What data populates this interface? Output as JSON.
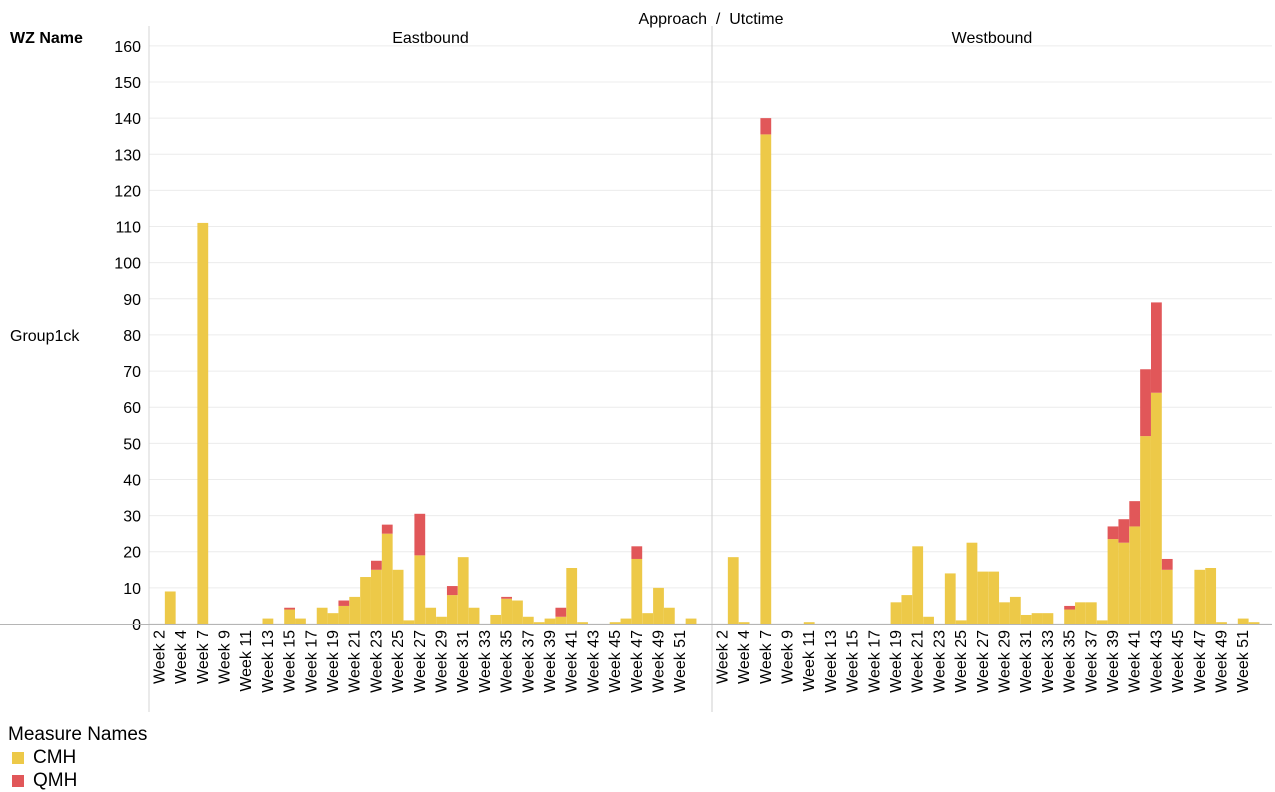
{
  "header": {
    "top_title": "Approach  /  Utctime",
    "row_header": "WZ Name",
    "row_label": "Group1ck"
  },
  "legend": {
    "title": "Measure Names",
    "items": [
      {
        "label": "CMH",
        "color": "#EDC948"
      },
      {
        "label": "QMH",
        "color": "#E15759"
      }
    ]
  },
  "chart_data": {
    "type": "bar",
    "stacked": true,
    "title": "",
    "xlabel": "Utctime",
    "ylabel": "",
    "ylim": [
      0,
      160
    ],
    "y_ticks": [
      0,
      10,
      20,
      30,
      40,
      50,
      60,
      70,
      80,
      90,
      100,
      110,
      120,
      130,
      140,
      150,
      160
    ],
    "grid": true,
    "legend_position": "bottom-left",
    "panels": [
      {
        "name": "Eastbound",
        "categories": [
          "Week 2",
          "Week 3",
          "Week 4",
          "Week 5",
          "Week 7",
          "Week 8",
          "Week 9",
          "Week 10",
          "Week 11",
          "Week 12",
          "Week 13",
          "Week 14",
          "Week 15",
          "Week 16",
          "Week 17",
          "Week 18",
          "Week 19",
          "Week 20",
          "Week 21",
          "Week 22",
          "Week 23",
          "Week 24",
          "Week 25",
          "Week 26",
          "Week 27",
          "Week 28",
          "Week 29",
          "Week 30",
          "Week 31",
          "Week 32",
          "Week 33",
          "Week 34",
          "Week 35",
          "Week 36",
          "Week 37",
          "Week 38",
          "Week 39",
          "Week 40",
          "Week 41",
          "Week 42",
          "Week 43",
          "Week 44",
          "Week 45",
          "Week 46",
          "Week 47",
          "Week 48",
          "Week 49",
          "Week 50",
          "Week 51",
          "Week 52"
        ],
        "tick_labels": [
          "Week 2",
          "Week 4",
          "Week 7",
          "Week 9",
          "Week 11",
          "Week 13",
          "Week 15",
          "Week 17",
          "Week 19",
          "Week 21",
          "Week 23",
          "Week 25",
          "Week 27",
          "Week 29",
          "Week 31",
          "Week 33",
          "Week 35",
          "Week 37",
          "Week 39",
          "Week 41",
          "Week 43",
          "Week 45",
          "Week 47",
          "Week 49",
          "Week 51"
        ],
        "series": [
          {
            "name": "CMH",
            "values": [
              0,
              9,
              0,
              0,
              111,
              0,
              0,
              0,
              0,
              0,
              1.5,
              0,
              4,
              1.5,
              0,
              4.5,
              3,
              5,
              7.5,
              13,
              15,
              25,
              15,
              1,
              19,
              4.5,
              2,
              8,
              18.5,
              4.5,
              0,
              2.5,
              7,
              6.5,
              2,
              0.5,
              1.5,
              2,
              15.5,
              0.5,
              0,
              0,
              0.5,
              1.5,
              18,
              3,
              10,
              4.5,
              0,
              1.5
            ]
          },
          {
            "name": "QMH",
            "values": [
              0,
              0,
              0,
              0,
              0,
              0,
              0,
              0,
              0,
              0,
              0,
              0,
              0.5,
              0,
              0,
              0,
              0,
              1.5,
              0,
              0,
              2.5,
              2.5,
              0,
              0,
              11.5,
              0,
              0,
              2.5,
              0,
              0,
              0,
              0,
              0.5,
              0,
              0,
              0,
              0,
              2.5,
              0,
              0,
              0,
              0,
              0,
              0,
              3.5,
              0,
              0,
              0,
              0,
              0
            ]
          }
        ]
      },
      {
        "name": "Westbound",
        "categories": [
          "Week 2",
          "Week 3",
          "Week 4",
          "Week 5",
          "Week 7",
          "Week 8",
          "Week 9",
          "Week 10",
          "Week 11",
          "Week 12",
          "Week 13",
          "Week 14",
          "Week 15",
          "Week 16",
          "Week 17",
          "Week 18",
          "Week 19",
          "Week 20",
          "Week 21",
          "Week 22",
          "Week 23",
          "Week 24",
          "Week 25",
          "Week 26",
          "Week 27",
          "Week 28",
          "Week 29",
          "Week 30",
          "Week 31",
          "Week 32",
          "Week 33",
          "Week 34",
          "Week 35",
          "Week 36",
          "Week 37",
          "Week 38",
          "Week 39",
          "Week 40",
          "Week 41",
          "Week 42",
          "Week 43",
          "Week 44",
          "Week 45",
          "Week 46",
          "Week 47",
          "Week 48",
          "Week 49",
          "Week 50",
          "Week 51",
          "Week 52"
        ],
        "tick_labels": [
          "Week 2",
          "Week 4",
          "Week 7",
          "Week 9",
          "Week 11",
          "Week 13",
          "Week 15",
          "Week 17",
          "Week 19",
          "Week 21",
          "Week 23",
          "Week 25",
          "Week 27",
          "Week 29",
          "Week 31",
          "Week 33",
          "Week 35",
          "Week 37",
          "Week 39",
          "Week 41",
          "Week 43",
          "Week 45",
          "Week 47",
          "Week 49",
          "Week 51"
        ],
        "series": [
          {
            "name": "CMH",
            "values": [
              0,
              18.5,
              0.5,
              0,
              135.5,
              0,
              0,
              0,
              0.5,
              0,
              0,
              0,
              0,
              0,
              0,
              0,
              6,
              8,
              21.5,
              2,
              0,
              14,
              1,
              22.5,
              14.5,
              14.5,
              6,
              7.5,
              2.5,
              3,
              3,
              0,
              4,
              6,
              6,
              1,
              23.5,
              22.5,
              27,
              52,
              64,
              15,
              0,
              0,
              15,
              15.5,
              0.5,
              0,
              1.5,
              0.5
            ]
          },
          {
            "name": "QMH",
            "values": [
              0,
              0,
              0,
              0,
              4.5,
              0,
              0,
              0,
              0,
              0,
              0,
              0,
              0,
              0,
              0,
              0,
              0,
              0,
              0,
              0,
              0,
              0,
              0,
              0,
              0,
              0,
              0,
              0,
              0,
              0,
              0,
              0,
              1,
              0,
              0,
              0,
              3.5,
              6.5,
              7,
              18.5,
              25,
              3,
              0,
              0,
              0,
              0,
              0,
              0,
              0,
              0
            ]
          }
        ]
      }
    ]
  }
}
